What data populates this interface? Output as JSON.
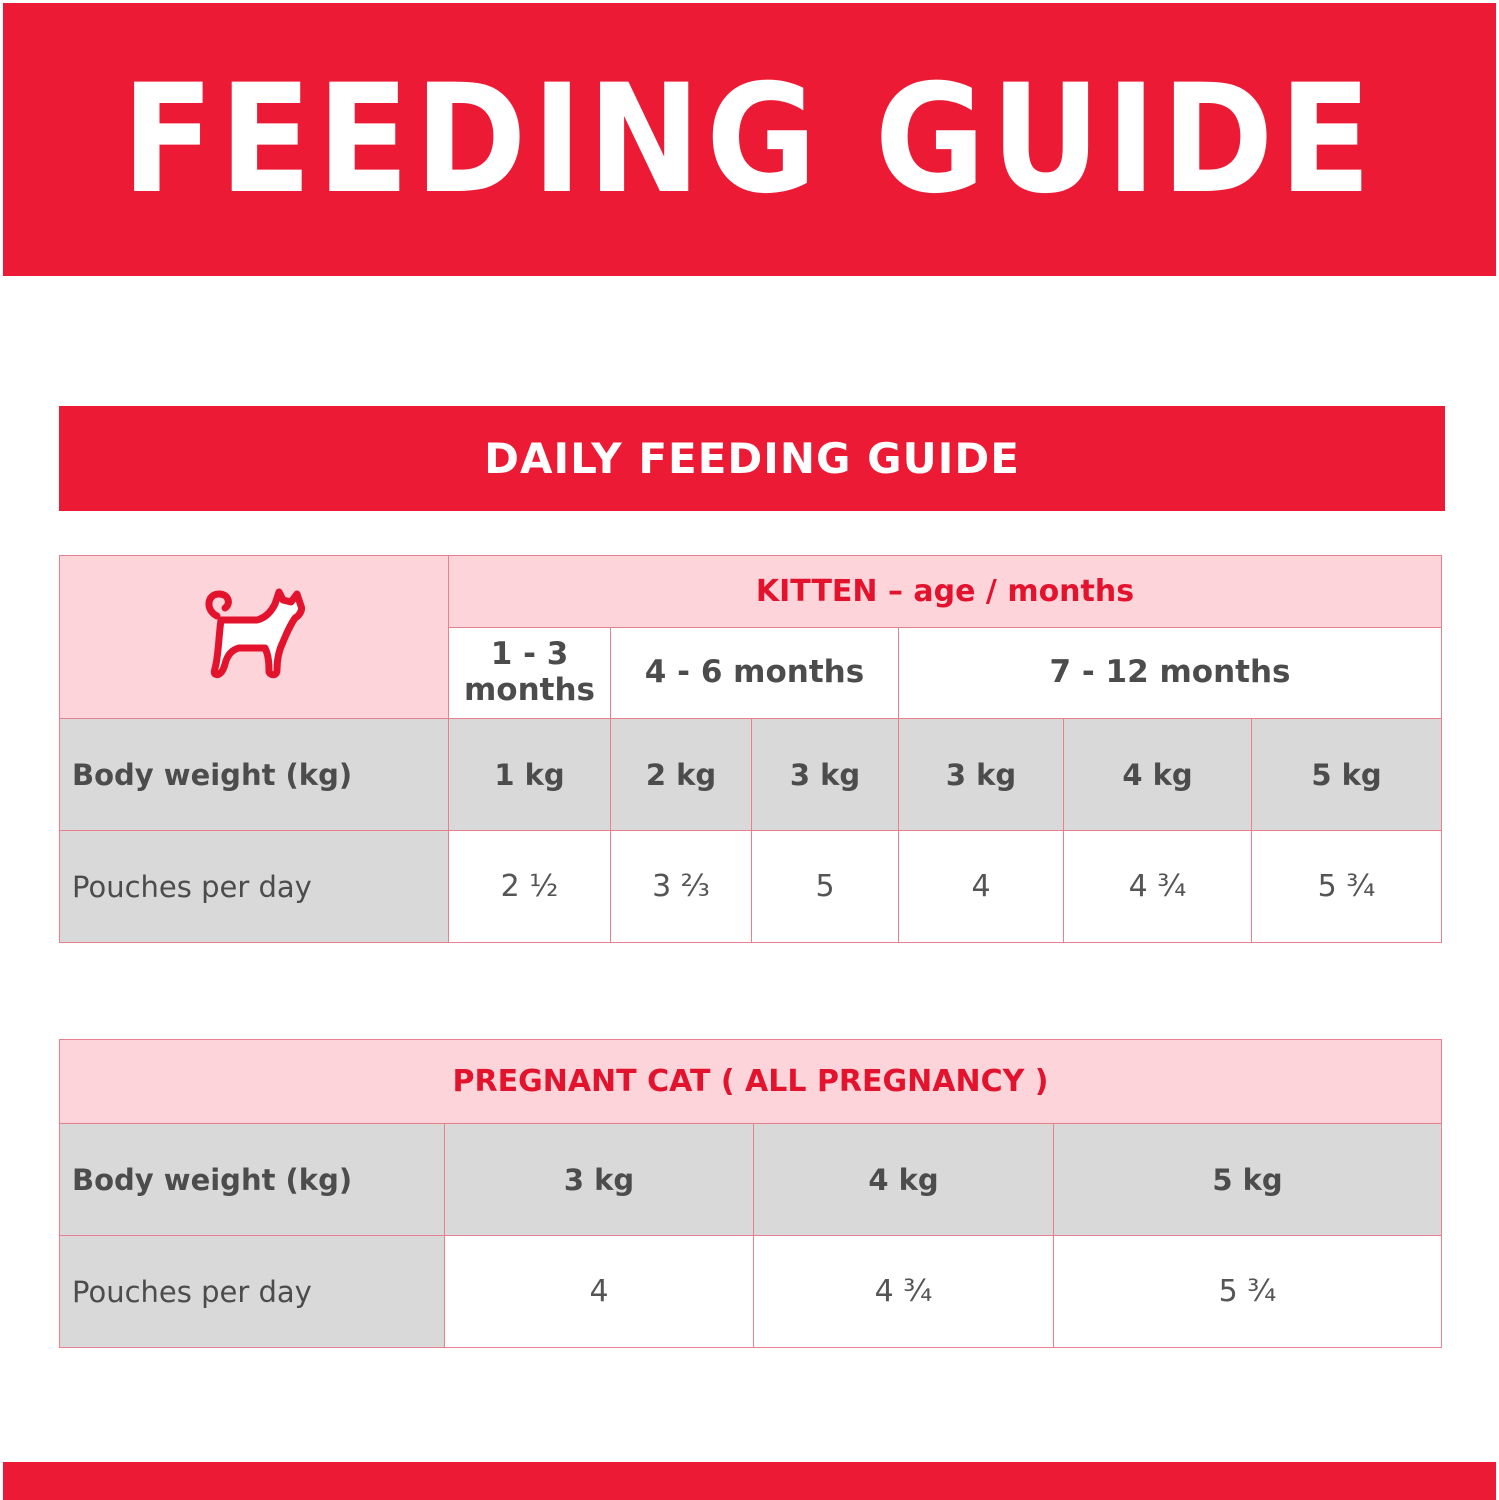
{
  "header": {
    "title": "FEEDING GUIDE"
  },
  "section": {
    "title": "DAILY FEEDING GUIDE"
  },
  "kitten_table": {
    "icon": "cat-outline-icon",
    "group_header": "KITTEN – age / months",
    "age_groups": [
      "1 - 3 months",
      "4 - 6 months",
      "7 - 12 months"
    ],
    "weight_label": "Body weight (kg)",
    "weights": [
      "1 kg",
      "2 kg",
      "3 kg",
      "3 kg",
      "4 kg",
      "5 kg"
    ],
    "pouches_label": "Pouches per day",
    "pouches": [
      "2 ½",
      "3 ⅔",
      "5",
      "4",
      "4 ¾",
      "5 ¾"
    ]
  },
  "pregnant_table": {
    "group_header": "PREGNANT CAT ( ALL PREGNANCY )",
    "weight_label": "Body weight (kg)",
    "weights": [
      "3 kg",
      "4 kg",
      "5 kg"
    ],
    "pouches_label": "Pouches per day",
    "pouches": [
      "4",
      "4 ¾",
      "5 ¾"
    ]
  },
  "colors": {
    "brand_red": "#ec1a34",
    "pink": "#fdd4d9",
    "grey": "#d9d9d9"
  }
}
